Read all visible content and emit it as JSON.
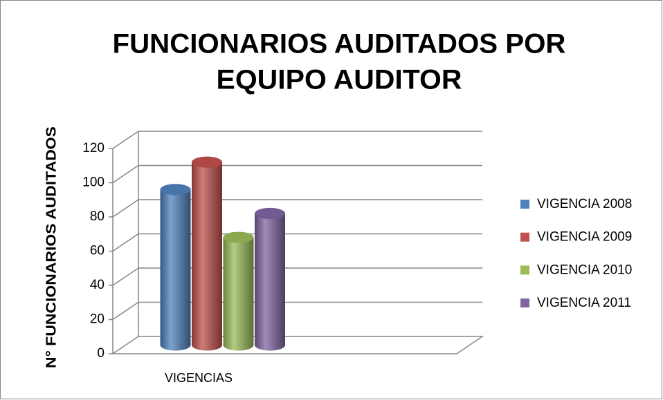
{
  "chart_data": {
    "type": "bar3d",
    "title": [
      "FUNCIONARIOS AUDITADOS POR",
      "EQUIPO AUDITOR"
    ],
    "y_label": "N° FUNCIONARIOS AUDITADOS",
    "categories": [
      "VIGENCIAS"
    ],
    "series": [
      {
        "name": "VIGENCIA 2008",
        "color": "#4f81bd",
        "values": [
          91
        ]
      },
      {
        "name": "VIGENCIA 2009",
        "color": "#c0504d",
        "values": [
          107
        ]
      },
      {
        "name": "VIGENCIA 2010",
        "color": "#9bbb59",
        "values": [
          63
        ]
      },
      {
        "name": "VIGENCIA 2011",
        "color": "#8064a2",
        "values": [
          77
        ]
      }
    ],
    "ylim": [
      0,
      120
    ],
    "yticks": [
      0,
      20,
      40,
      60,
      80,
      100,
      120
    ],
    "grid": true,
    "legend": "right"
  }
}
